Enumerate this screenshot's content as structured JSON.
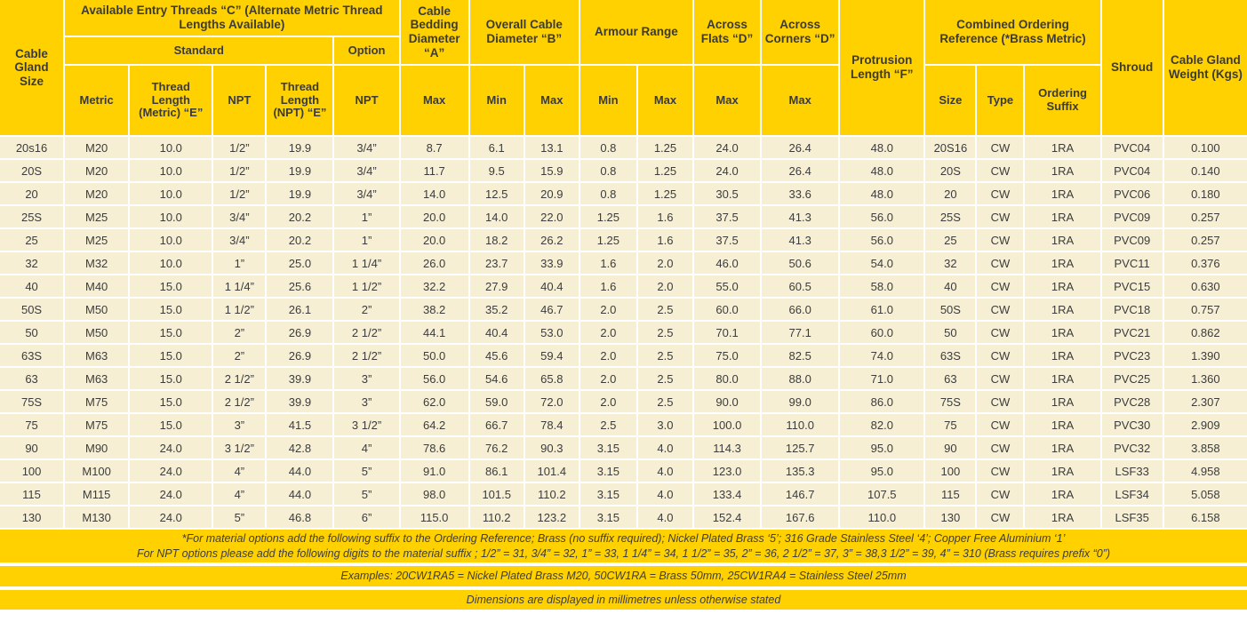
{
  "meta": {
    "colors": {
      "header_bg": "#FFD100",
      "row_bg": "#F6EFD4",
      "grid": "#FFFFFF",
      "text": "#3B3B3B"
    }
  },
  "table": {
    "header": {
      "cable_gland_size": "Cable Gland Size",
      "entry_threads": "Available Entry Threads “C” (Alternate Metric Thread Lengths Available)",
      "standard": "Standard",
      "option": "Option",
      "metric": "Metric",
      "thread_length_metric": "Thread Length (Metric) “E”",
      "npt": "NPT",
      "thread_length_npt": "Thread Length (NPT) “E”",
      "npt_option": "NPT",
      "cable_bedding": "Cable Bedding Diameter “A”",
      "overall_cable": "Overall Cable Diameter “B”",
      "armour_range": "Armour Range",
      "across_flats": "Across Flats “D”",
      "across_corners": "Across Corners “D”",
      "protrusion_length": "Protrusion Length “F”",
      "combined_ordering": "Combined Ordering Reference (*Brass Metric)",
      "size": "Size",
      "type": "Type",
      "ordering_suffix": "Ordering Suffix",
      "shroud": "Shroud",
      "weight": "Cable Gland Weight (Kgs)",
      "min": "Min",
      "max": "Max"
    },
    "rows": [
      [
        "20s16",
        "M20",
        "10.0",
        "1/2”",
        "19.9",
        "3/4”",
        "8.7",
        "6.1",
        "13.1",
        "0.8",
        "1.25",
        "24.0",
        "26.4",
        "48.0",
        "20S16",
        "CW",
        "1RA",
        "PVC04",
        "0.100"
      ],
      [
        "20S",
        "M20",
        "10.0",
        "1/2”",
        "19.9",
        "3/4”",
        "11.7",
        "9.5",
        "15.9",
        "0.8",
        "1.25",
        "24.0",
        "26.4",
        "48.0",
        "20S",
        "CW",
        "1RA",
        "PVC04",
        "0.140"
      ],
      [
        "20",
        "M20",
        "10.0",
        "1/2”",
        "19.9",
        "3/4”",
        "14.0",
        "12.5",
        "20.9",
        "0.8",
        "1.25",
        "30.5",
        "33.6",
        "48.0",
        "20",
        "CW",
        "1RA",
        "PVC06",
        "0.180"
      ],
      [
        "25S",
        "M25",
        "10.0",
        "3/4”",
        "20.2",
        "1”",
        "20.0",
        "14.0",
        "22.0",
        "1.25",
        "1.6",
        "37.5",
        "41.3",
        "56.0",
        "25S",
        "CW",
        "1RA",
        "PVC09",
        "0.257"
      ],
      [
        "25",
        "M25",
        "10.0",
        "3/4”",
        "20.2",
        "1”",
        "20.0",
        "18.2",
        "26.2",
        "1.25",
        "1.6",
        "37.5",
        "41.3",
        "56.0",
        "25",
        "CW",
        "1RA",
        "PVC09",
        "0.257"
      ],
      [
        "32",
        "M32",
        "10.0",
        "1”",
        "25.0",
        "1 1/4”",
        "26.0",
        "23.7",
        "33.9",
        "1.6",
        "2.0",
        "46.0",
        "50.6",
        "54.0",
        "32",
        "CW",
        "1RA",
        "PVC11",
        "0.376"
      ],
      [
        "40",
        "M40",
        "15.0",
        "1 1/4”",
        "25.6",
        "1 1/2”",
        "32.2",
        "27.9",
        "40.4",
        "1.6",
        "2.0",
        "55.0",
        "60.5",
        "58.0",
        "40",
        "CW",
        "1RA",
        "PVC15",
        "0.630"
      ],
      [
        "50S",
        "M50",
        "15.0",
        "1 1/2”",
        "26.1",
        "2”",
        "38.2",
        "35.2",
        "46.7",
        "2.0",
        "2.5",
        "60.0",
        "66.0",
        "61.0",
        "50S",
        "CW",
        "1RA",
        "PVC18",
        "0.757"
      ],
      [
        "50",
        "M50",
        "15.0",
        "2”",
        "26.9",
        "2 1/2”",
        "44.1",
        "40.4",
        "53.0",
        "2.0",
        "2.5",
        "70.1",
        "77.1",
        "60.0",
        "50",
        "CW",
        "1RA",
        "PVC21",
        "0.862"
      ],
      [
        "63S",
        "M63",
        "15.0",
        "2”",
        "26.9",
        "2 1/2”",
        "50.0",
        "45.6",
        "59.4",
        "2.0",
        "2.5",
        "75.0",
        "82.5",
        "74.0",
        "63S",
        "CW",
        "1RA",
        "PVC23",
        "1.390"
      ],
      [
        "63",
        "M63",
        "15.0",
        "2 1/2”",
        "39.9",
        "3”",
        "56.0",
        "54.6",
        "65.8",
        "2.0",
        "2.5",
        "80.0",
        "88.0",
        "71.0",
        "63",
        "CW",
        "1RA",
        "PVC25",
        "1.360"
      ],
      [
        "75S",
        "M75",
        "15.0",
        "2 1/2”",
        "39.9",
        "3”",
        "62.0",
        "59.0",
        "72.0",
        "2.0",
        "2.5",
        "90.0",
        "99.0",
        "86.0",
        "75S",
        "CW",
        "1RA",
        "PVC28",
        "2.307"
      ],
      [
        "75",
        "M75",
        "15.0",
        "3”",
        "41.5",
        "3 1/2”",
        "64.2",
        "66.7",
        "78.4",
        "2.5",
        "3.0",
        "100.0",
        "110.0",
        "82.0",
        "75",
        "CW",
        "1RA",
        "PVC30",
        "2.909"
      ],
      [
        "90",
        "M90",
        "24.0",
        "3 1/2”",
        "42.8",
        "4”",
        "78.6",
        "76.2",
        "90.3",
        "3.15",
        "4.0",
        "114.3",
        "125.7",
        "95.0",
        "90",
        "CW",
        "1RA",
        "PVC32",
        "3.858"
      ],
      [
        "100",
        "M100",
        "24.0",
        "4”",
        "44.0",
        "5”",
        "91.0",
        "86.1",
        "101.4",
        "3.15",
        "4.0",
        "123.0",
        "135.3",
        "95.0",
        "100",
        "CW",
        "1RA",
        "LSF33",
        "4.958"
      ],
      [
        "115",
        "M115",
        "24.0",
        "4”",
        "44.0",
        "5”",
        "98.0",
        "101.5",
        "110.2",
        "3.15",
        "4.0",
        "133.4",
        "146.7",
        "107.5",
        "115",
        "CW",
        "1RA",
        "LSF34",
        "5.058"
      ],
      [
        "130",
        "M130",
        "24.0",
        "5”",
        "46.8",
        "6”",
        "115.0",
        "110.2",
        "123.2",
        "3.15",
        "4.0",
        "152.4",
        "167.6",
        "110.0",
        "130",
        "CW",
        "1RA",
        "LSF35",
        "6.158"
      ]
    ]
  },
  "notes": {
    "material_options": "*For material options add the following suffix to the Ordering Reference; Brass (no suffix required); Nickel Plated Brass ‘5’; 316 Grade Stainless Steel ‘4’; Copper Free Aluminium ‘1’",
    "npt_options": "For  NPT options please add the following digits to the material suffix ; 1/2” = 31, 3/4” = 32, 1” = 33, 1 1/4” = 34, 1 1/2” = 35, 2” = 36, 2 1/2” = 37, 3” = 38,3 1/2” = 39, 4” = 310 (Brass requires prefix “0”)",
    "examples": "Examples: 20CW1RA5 = Nickel Plated Brass M20, 50CW1RA = Brass 50mm, 25CW1RA4 = Stainless Steel 25mm",
    "dimensions": "Dimensions are displayed in millimetres unless otherwise stated"
  }
}
